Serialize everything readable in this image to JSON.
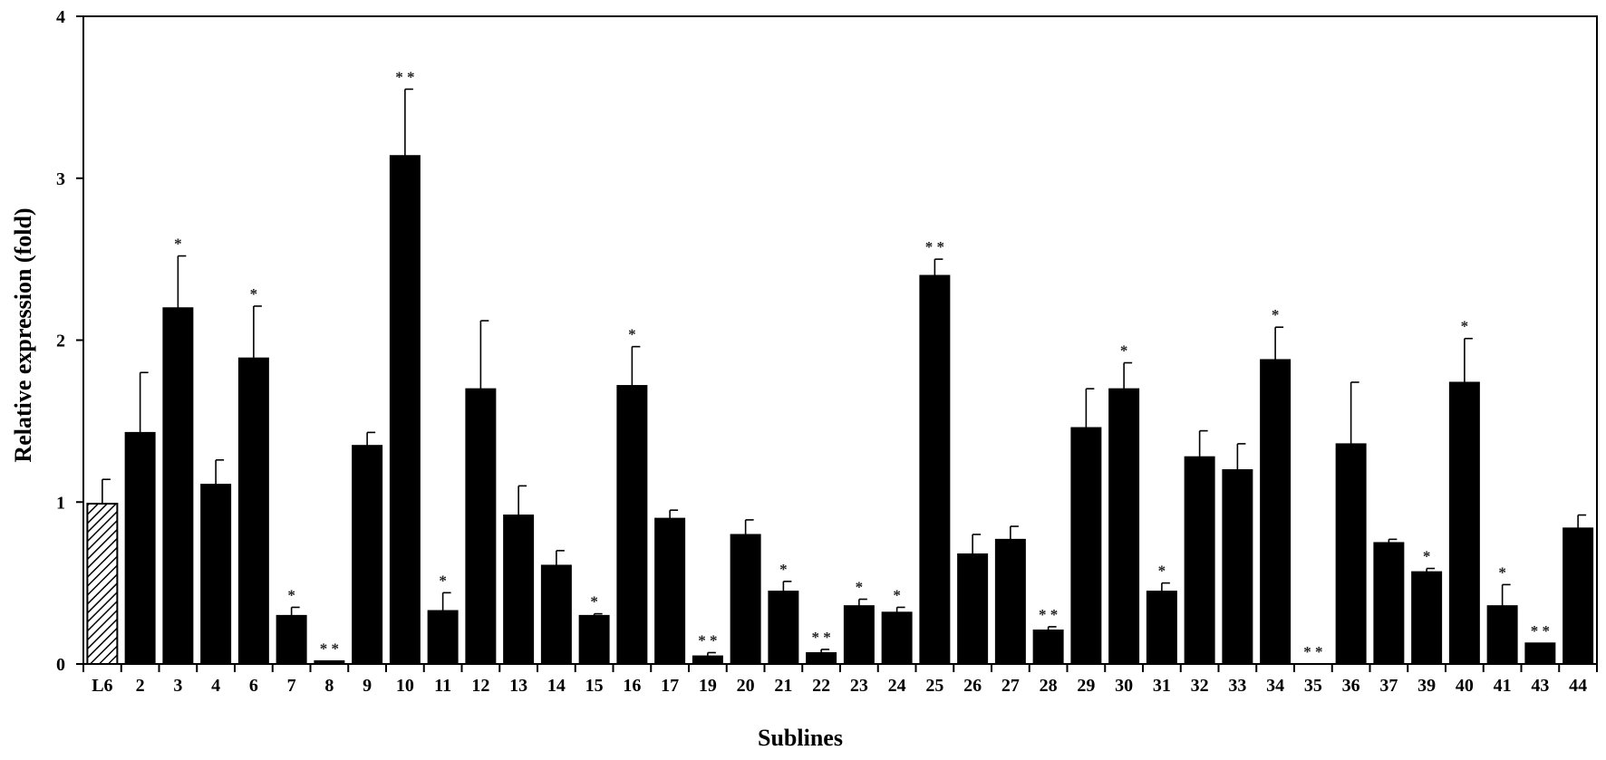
{
  "chart_data": {
    "type": "bar",
    "xlabel": "Sublines",
    "ylabel": "Relative expression (fold)",
    "ylim": [
      0,
      4
    ],
    "yticks": [
      "0",
      "1",
      "2",
      "3",
      "4"
    ],
    "grid": false,
    "categories": [
      "L6",
      "2",
      "3",
      "4",
      "6",
      "7",
      "8",
      "9",
      "10",
      "11",
      "12",
      "13",
      "14",
      "15",
      "16",
      "17",
      "19",
      "20",
      "21",
      "22",
      "23",
      "24",
      "25",
      "26",
      "27",
      "28",
      "29",
      "30",
      "31",
      "32",
      "33",
      "34",
      "35",
      "36",
      "37",
      "39",
      "40",
      "41",
      "43",
      "44"
    ],
    "values": [
      0.99,
      1.43,
      2.2,
      1.11,
      1.89,
      0.3,
      0.02,
      1.35,
      3.14,
      0.33,
      1.7,
      0.92,
      0.61,
      0.3,
      1.72,
      0.9,
      0.05,
      0.8,
      0.45,
      0.07,
      0.36,
      0.32,
      2.4,
      0.68,
      0.77,
      0.21,
      1.46,
      1.7,
      0.45,
      1.28,
      1.2,
      1.88,
      0.0,
      1.36,
      0.75,
      0.57,
      1.74,
      0.36,
      0.13,
      0.84
    ],
    "error": [
      0.15,
      0.37,
      0.32,
      0.15,
      0.32,
      0.05,
      0.0,
      0.08,
      0.41,
      0.11,
      0.42,
      0.18,
      0.09,
      0.01,
      0.24,
      0.05,
      0.02,
      0.09,
      0.06,
      0.02,
      0.04,
      0.03,
      0.1,
      0.12,
      0.08,
      0.02,
      0.24,
      0.16,
      0.05,
      0.16,
      0.16,
      0.2,
      0.0,
      0.38,
      0.02,
      0.02,
      0.27,
      0.13,
      0.0,
      0.08
    ],
    "significance": [
      "",
      "",
      "*",
      "",
      "*",
      "*",
      "* *",
      "",
      "* *",
      "*",
      "",
      "",
      "",
      "*",
      "*",
      "",
      "* *",
      "",
      "*",
      "* *",
      "*",
      "*",
      "* *",
      "",
      "",
      "* *",
      "",
      "*",
      "*",
      "",
      "",
      "*",
      "* *",
      "",
      "",
      "*",
      "*",
      "*",
      "* *",
      ""
    ],
    "control_index": 0
  },
  "colors": {
    "bar": "#000000",
    "axis": "#000000",
    "control_hatch": "#000000",
    "background": "#ffffff"
  }
}
